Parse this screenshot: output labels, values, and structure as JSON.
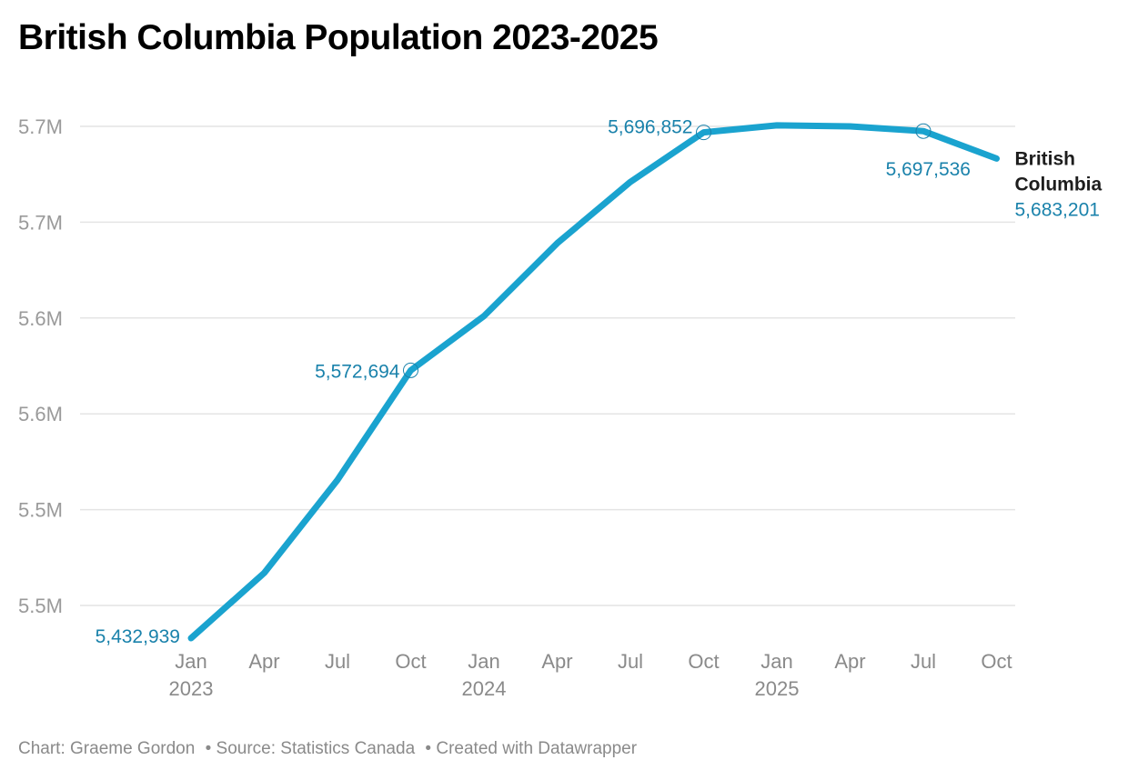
{
  "title": "British Columbia Population 2023-2025",
  "footer": {
    "credit": "Chart: Graeme Gordon",
    "source": "• Source: Statistics Canada",
    "created": "• Created with Datawrapper"
  },
  "colors": {
    "line": "#1aa3cf",
    "value_label": "#1a82ab",
    "grid": "#e4e4e4"
  },
  "chart_data": {
    "type": "line",
    "title": "British Columbia Population 2023-2025",
    "xlabel": "",
    "ylabel": "",
    "x": [
      "Jan 2023",
      "Apr 2023",
      "Jul 2023",
      "Oct 2023",
      "Jan 2024",
      "Apr 2024",
      "Jul 2024",
      "Oct 2024",
      "Jan 2025",
      "Apr 2025",
      "Jul 2025",
      "Oct 2025"
    ],
    "x_tick_labels": [
      {
        "month": "Jan",
        "year": "2023"
      },
      {
        "month": "Apr",
        "year": ""
      },
      {
        "month": "Jul",
        "year": ""
      },
      {
        "month": "Oct",
        "year": ""
      },
      {
        "month": "Jan",
        "year": "2024"
      },
      {
        "month": "Apr",
        "year": ""
      },
      {
        "month": "Jul",
        "year": ""
      },
      {
        "month": "Oct",
        "year": ""
      },
      {
        "month": "Jan",
        "year": "2025"
      },
      {
        "month": "Apr",
        "year": ""
      },
      {
        "month": "Jul",
        "year": ""
      },
      {
        "month": "Oct",
        "year": ""
      }
    ],
    "series": [
      {
        "name": "British Columbia",
        "name_lines": [
          "British",
          "Columbia"
        ],
        "values": [
          5432939,
          5467000,
          5515500,
          5572694,
          5601000,
          5639000,
          5671000,
          5696852,
          5700500,
          5700000,
          5697536,
          5683201
        ]
      }
    ],
    "annotations": [
      {
        "index": 0,
        "label": "5,432,939",
        "marker": false,
        "pos": "left"
      },
      {
        "index": 3,
        "label": "5,572,694",
        "marker": true,
        "pos": "left"
      },
      {
        "index": 7,
        "label": "5,696,852",
        "marker": true,
        "pos": "left"
      },
      {
        "index": 10,
        "label": "5,697,536",
        "marker": true,
        "pos": "below"
      },
      {
        "index": 11,
        "label": "5,683,201",
        "marker": false,
        "pos": "end"
      }
    ],
    "y_ticks": [
      {
        "value": 5450000,
        "label": "5.5M"
      },
      {
        "value": 5500000,
        "label": "5.5M"
      },
      {
        "value": 5550000,
        "label": "5.6M"
      },
      {
        "value": 5600000,
        "label": "5.6M"
      },
      {
        "value": 5650000,
        "label": "5.7M"
      },
      {
        "value": 5700000,
        "label": "5.7M"
      }
    ],
    "ylim": [
      5450000,
      5700000
    ],
    "grid": true,
    "legend": "direct-label-right"
  }
}
